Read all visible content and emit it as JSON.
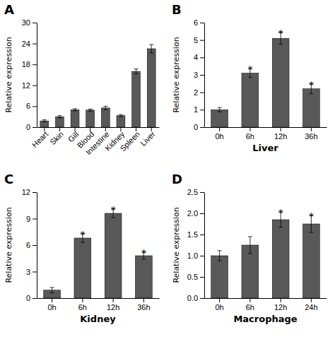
{
  "chart_data": [
    {
      "type": "bar",
      "title": "A",
      "categories": [
        "Heart",
        "Skin",
        "Gill",
        "Blood",
        "Intestine",
        "Kidney",
        "Spleen",
        "Liver"
      ],
      "values": [
        1.8,
        3.0,
        5.0,
        4.9,
        5.5,
        3.3,
        16.0,
        22.5
      ],
      "errors": [
        0.3,
        0.3,
        0.3,
        0.3,
        0.5,
        0.3,
        0.7,
        1.2
      ],
      "ylim": [
        0,
        30
      ],
      "yticks": [
        0,
        6,
        12,
        18,
        24,
        30
      ],
      "ylabel": "Relative expression",
      "color": "#595959"
    },
    {
      "type": "bar",
      "title": "B",
      "categories": [
        "0h",
        "6h",
        "12h",
        "36h"
      ],
      "values": [
        1.0,
        3.1,
        5.1,
        2.2
      ],
      "errors": [
        0.12,
        0.25,
        0.35,
        0.28
      ],
      "ylim": [
        0,
        6
      ],
      "yticks": [
        0,
        1,
        2,
        3,
        4,
        5,
        6
      ],
      "ylabel": "Relative expression",
      "xlabel": "Liver",
      "color": "#595959",
      "annotations": [
        {
          "category": "6h",
          "text": "*"
        },
        {
          "category": "12h",
          "text": "*"
        },
        {
          "category": "36h",
          "text": "*"
        }
      ]
    },
    {
      "type": "bar",
      "title": "C",
      "categories": [
        "0h",
        "6h",
        "12h",
        "36h"
      ],
      "values": [
        0.9,
        6.8,
        9.6,
        4.8
      ],
      "errors": [
        0.3,
        0.5,
        0.5,
        0.4
      ],
      "ylim": [
        0,
        12
      ],
      "yticks": [
        0,
        3,
        6,
        9,
        12
      ],
      "ylabel": "Relative expression",
      "xlabel": "Kidney",
      "color": "#595959",
      "annotations": [
        {
          "category": "6h",
          "text": "*"
        },
        {
          "category": "12h",
          "text": "*"
        },
        {
          "category": "36h",
          "text": "*"
        }
      ]
    },
    {
      "type": "bar",
      "title": "D",
      "categories": [
        "0h",
        "6h",
        "12h",
        "24h"
      ],
      "values": [
        1.0,
        1.25,
        1.85,
        1.75
      ],
      "errors": [
        0.12,
        0.2,
        0.18,
        0.2
      ],
      "ylim": [
        0,
        2.5
      ],
      "yticks": [
        {
          "value": 0,
          "label": "0.0"
        },
        0.5,
        {
          "value": 1,
          "label": "1.0"
        },
        1.5,
        {
          "value": 2,
          "label": "2.0"
        },
        2.5
      ],
      "ylabel": "Relative expression",
      "xlabel": "Macrophage",
      "color": "#595959",
      "annotations": [
        {
          "category": "12h",
          "text": "*"
        },
        {
          "category": "24h",
          "text": "*"
        }
      ]
    }
  ]
}
